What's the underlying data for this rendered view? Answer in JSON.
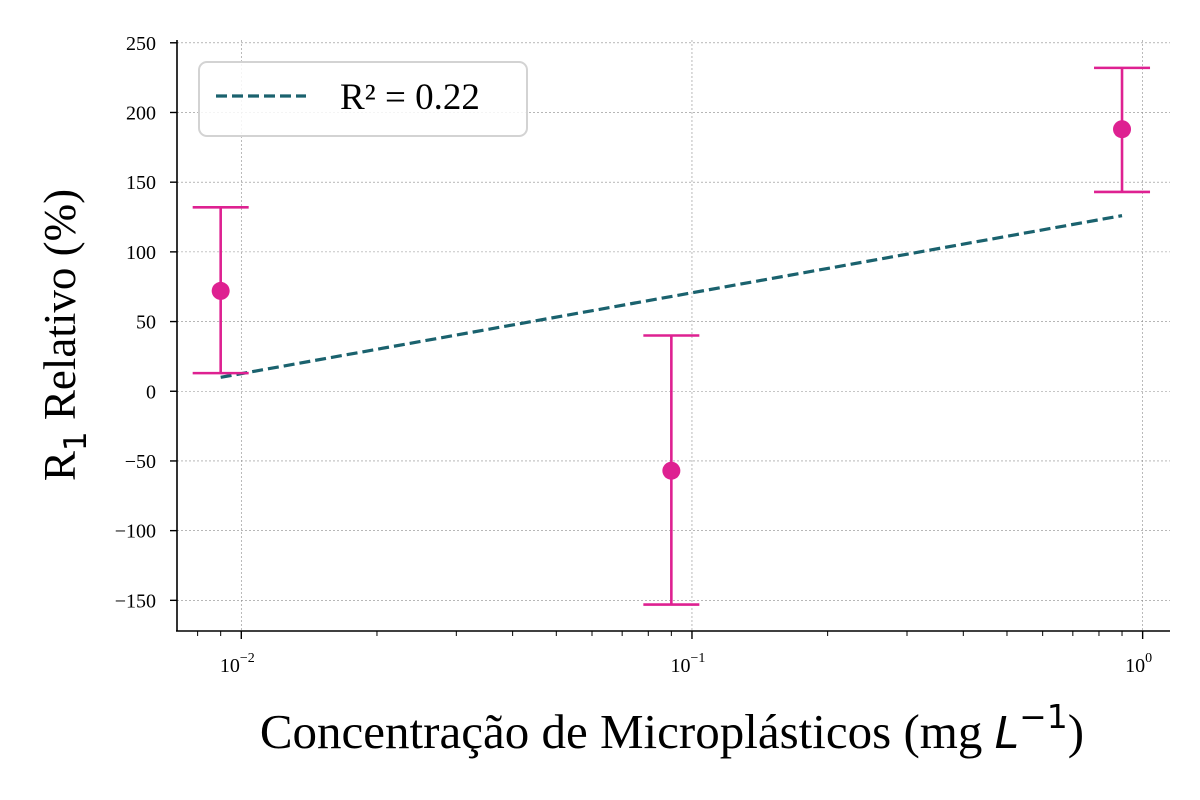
{
  "chart_data": {
    "type": "scatter",
    "x_scale": "log",
    "xlim": [
      0.0072,
      1.15
    ],
    "ylim": [
      -172,
      252
    ],
    "grid": true,
    "xlabel": {
      "main": "Concentração de Microplásticos (mg ",
      "math": "L",
      "sup": "−1",
      "close": ")"
    },
    "ylabel": {
      "main": "R",
      "sub": "1",
      "rest": " Relativo (%)"
    },
    "x_ticks": [
      {
        "value": 0.01,
        "base": "10",
        "exp": "−2"
      },
      {
        "value": 0.1,
        "base": "10",
        "exp": "−1"
      },
      {
        "value": 1,
        "base": "10",
        "exp": "0"
      }
    ],
    "y_ticks": [
      {
        "value": 250,
        "label": "250"
      },
      {
        "value": 200,
        "label": "200"
      },
      {
        "value": 150,
        "label": "150"
      },
      {
        "value": 100,
        "label": "100"
      },
      {
        "value": 50,
        "label": "50"
      },
      {
        "value": 0,
        "label": "0"
      },
      {
        "value": -50,
        "label": "−50"
      },
      {
        "value": -100,
        "label": "−100"
      },
      {
        "value": -150,
        "label": "−150"
      }
    ],
    "points": [
      {
        "x": 0.009,
        "y": 72,
        "yerr_low": 13,
        "yerr_high": 132
      },
      {
        "x": 0.09,
        "y": -57,
        "yerr_low": -153,
        "yerr_high": 40
      },
      {
        "x": 0.9,
        "y": 188,
        "yerr_low": 143,
        "yerr_high": 232
      }
    ],
    "fit_line": {
      "label": "R² = 0.22",
      "x": [
        0.009,
        0.9
      ],
      "y": [
        10,
        126
      ]
    },
    "legend_position": "top-left",
    "colors": {
      "points": "#de2191",
      "fit": "#1a626e"
    }
  }
}
